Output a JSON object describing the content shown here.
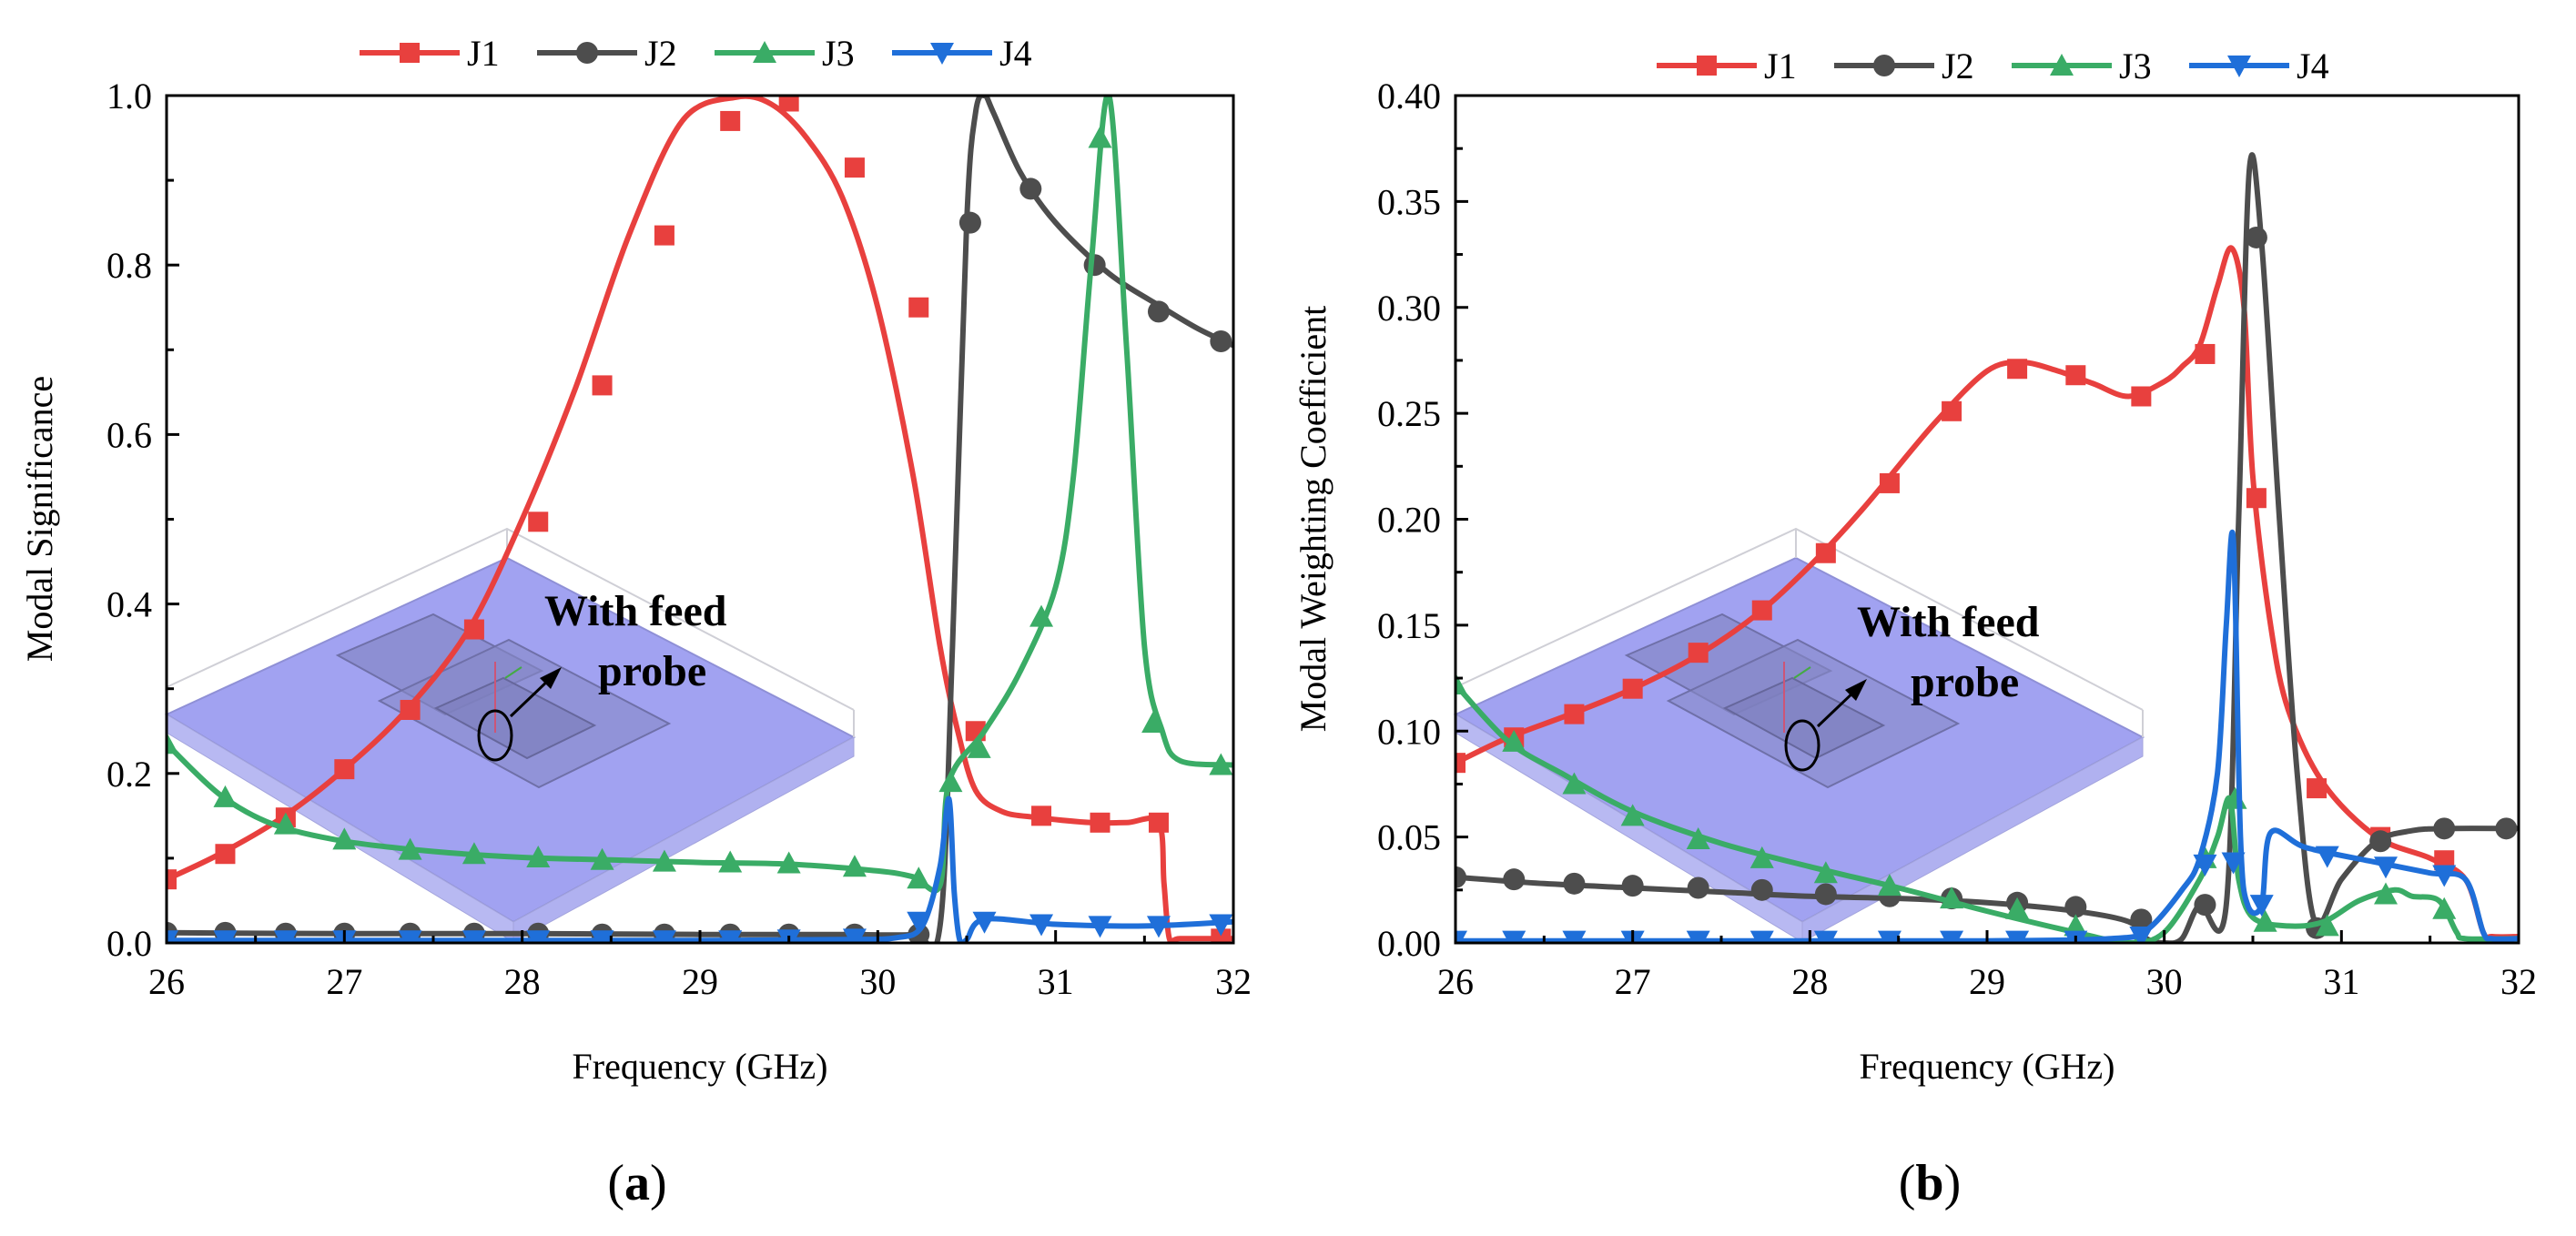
{
  "chart_data": [
    {
      "panel": "(a)",
      "panel_letter": "a",
      "type": "line",
      "xlabel": "Frequency (GHz)",
      "ylabel": "Modal Significance",
      "xlim": [
        26,
        32
      ],
      "ylim": [
        0,
        1.0
      ],
      "xticks": [
        26,
        27,
        28,
        29,
        30,
        31,
        32
      ],
      "yticks": [
        0.0,
        0.2,
        0.4,
        0.6,
        0.8,
        1.0
      ],
      "ytick_labels": [
        "0.0",
        "0.2",
        "0.4",
        "0.6",
        "0.8",
        "1.0"
      ],
      "legend_position": "top",
      "inset_annotation": "With feed probe",
      "inset_lines": [
        "With feed",
        "probe"
      ],
      "series": [
        {
          "name": "J1",
          "color": "#e8403e",
          "marker": "square",
          "x": [
            26.0,
            26.3,
            26.65,
            27.0,
            27.35,
            27.7,
            28.0,
            28.3,
            28.6,
            28.9,
            29.2,
            29.4,
            29.6,
            29.8,
            30.0,
            30.2,
            30.35,
            30.45,
            30.55,
            30.7,
            30.9,
            31.2,
            31.4,
            31.58,
            31.61,
            31.64,
            31.7,
            32.0
          ],
          "y": [
            0.075,
            0.105,
            0.148,
            0.205,
            0.275,
            0.37,
            0.5,
            0.655,
            0.835,
            0.97,
            0.998,
            0.99,
            0.95,
            0.88,
            0.75,
            0.55,
            0.35,
            0.25,
            0.18,
            0.155,
            0.148,
            0.142,
            0.142,
            0.142,
            0.07,
            0.005,
            0.005,
            0.005
          ],
          "marker_x": [
            26.0,
            26.33,
            26.67,
            27.0,
            27.37,
            27.73,
            28.09,
            28.45,
            28.8,
            29.17,
            29.5,
            29.87,
            30.23,
            30.55,
            30.92,
            31.25,
            31.58,
            31.93
          ],
          "marker_y": [
            0.075,
            0.105,
            0.148,
            0.205,
            0.275,
            0.37,
            0.497,
            0.658,
            0.835,
            0.97,
            0.993,
            0.915,
            0.75,
            0.25,
            0.15,
            0.142,
            0.142,
            0.005
          ]
        },
        {
          "name": "J2",
          "color": "#4d4d4d",
          "marker": "circle",
          "x": [
            26.0,
            27.0,
            28.0,
            29.0,
            29.8,
            30.2,
            30.35,
            30.42,
            30.5,
            30.55,
            30.6,
            30.65,
            30.8,
            31.0,
            31.3,
            31.6,
            31.8,
            32.0
          ],
          "y": [
            0.012,
            0.011,
            0.011,
            0.01,
            0.01,
            0.01,
            0.02,
            0.35,
            0.85,
            0.98,
            1.0,
            0.98,
            0.91,
            0.85,
            0.79,
            0.75,
            0.725,
            0.705
          ],
          "marker_x": [
            26.0,
            26.33,
            26.67,
            27.0,
            27.37,
            27.73,
            28.09,
            28.45,
            28.8,
            29.17,
            29.5,
            29.87,
            30.23,
            30.52,
            30.86,
            31.22,
            31.58,
            31.93
          ],
          "marker_y": [
            0.012,
            0.012,
            0.011,
            0.011,
            0.011,
            0.011,
            0.011,
            0.01,
            0.01,
            0.01,
            0.01,
            0.01,
            0.01,
            0.85,
            0.89,
            0.8,
            0.745,
            0.71
          ]
        },
        {
          "name": "J3",
          "color": "#3aac66",
          "marker": "triangle-up",
          "x": [
            26.0,
            26.3,
            26.6,
            27.0,
            27.5,
            28.0,
            28.5,
            29.0,
            29.5,
            30.0,
            30.2,
            30.35,
            30.4,
            30.6,
            30.8,
            31.0,
            31.1,
            31.2,
            31.3,
            31.4,
            31.5,
            31.6,
            31.7,
            32.0
          ],
          "y": [
            0.235,
            0.175,
            0.14,
            0.12,
            0.108,
            0.101,
            0.098,
            0.095,
            0.093,
            0.085,
            0.078,
            0.068,
            0.19,
            0.25,
            0.32,
            0.42,
            0.55,
            0.8,
            1.0,
            0.7,
            0.35,
            0.25,
            0.215,
            0.21
          ],
          "marker_x": [
            26.0,
            26.33,
            26.67,
            27.0,
            27.37,
            27.73,
            28.09,
            28.45,
            28.8,
            29.17,
            29.5,
            29.87,
            30.23,
            30.41,
            30.57,
            30.92,
            31.25,
            31.55,
            31.93
          ],
          "marker_y": [
            0.235,
            0.172,
            0.14,
            0.122,
            0.11,
            0.105,
            0.101,
            0.098,
            0.096,
            0.095,
            0.094,
            0.09,
            0.076,
            0.19,
            0.23,
            0.385,
            0.95,
            0.26,
            0.21
          ]
        },
        {
          "name": "J4",
          "color": "#1f6fd9",
          "marker": "triangle-down",
          "x": [
            26.0,
            27.0,
            28.0,
            29.0,
            29.8,
            30.1,
            30.25,
            30.35,
            30.4,
            30.43,
            30.46,
            30.5,
            30.6,
            31.0,
            31.5,
            32.0
          ],
          "y": [
            0.003,
            0.003,
            0.003,
            0.003,
            0.004,
            0.006,
            0.02,
            0.09,
            0.17,
            0.06,
            0.004,
            0.004,
            0.028,
            0.022,
            0.02,
            0.025
          ],
          "marker_x": [
            26.0,
            26.33,
            26.67,
            27.0,
            27.37,
            27.73,
            28.09,
            28.45,
            28.8,
            29.17,
            29.5,
            29.87,
            30.23,
            30.6,
            30.92,
            31.25,
            31.58,
            31.93
          ],
          "marker_y": [
            0.003,
            0.003,
            0.003,
            0.003,
            0.003,
            0.003,
            0.003,
            0.003,
            0.003,
            0.003,
            0.004,
            0.005,
            0.025,
            0.025,
            0.022,
            0.02,
            0.02,
            0.022
          ]
        }
      ]
    },
    {
      "panel": "(b)",
      "panel_letter": "b",
      "type": "line",
      "xlabel": "Frequency (GHz)",
      "ylabel": "Modal Weighting Coefficient",
      "xlim": [
        26,
        32
      ],
      "ylim": [
        0,
        0.4
      ],
      "xticks": [
        26,
        27,
        28,
        29,
        30,
        31,
        32
      ],
      "yticks": [
        0.0,
        0.05,
        0.1,
        0.15,
        0.2,
        0.25,
        0.3,
        0.35,
        0.4
      ],
      "ytick_labels": [
        "0.00",
        "0.05",
        "0.10",
        "0.15",
        "0.20",
        "0.25",
        "0.30",
        "0.35",
        "0.40"
      ],
      "legend_position": "top",
      "inset_annotation": "With feed probe",
      "inset_lines": [
        "With feed",
        "probe"
      ],
      "series": [
        {
          "name": "J1",
          "color": "#e8403e",
          "marker": "square",
          "x": [
            26.0,
            26.3,
            26.65,
            27.0,
            27.35,
            27.7,
            28.0,
            28.3,
            28.7,
            29.0,
            29.2,
            29.4,
            29.6,
            29.8,
            30.0,
            30.1,
            30.2,
            30.3,
            30.38,
            30.45,
            30.5,
            30.6,
            30.7,
            30.9,
            31.2,
            31.5,
            31.7,
            31.8,
            31.85,
            32.0
          ],
          "y": [
            0.085,
            0.097,
            0.108,
            0.12,
            0.135,
            0.155,
            0.178,
            0.205,
            0.245,
            0.27,
            0.274,
            0.27,
            0.264,
            0.258,
            0.265,
            0.272,
            0.282,
            0.31,
            0.328,
            0.3,
            0.22,
            0.15,
            0.11,
            0.075,
            0.05,
            0.04,
            0.03,
            0.005,
            0.003,
            0.003
          ],
          "marker_x": [
            26.0,
            26.33,
            26.67,
            27.0,
            27.37,
            27.73,
            28.09,
            28.45,
            28.8,
            29.17,
            29.5,
            29.87,
            30.23,
            30.52,
            30.86,
            31.22,
            31.58
          ],
          "marker_y": [
            0.085,
            0.097,
            0.108,
            0.12,
            0.137,
            0.157,
            0.184,
            0.217,
            0.251,
            0.271,
            0.268,
            0.258,
            0.278,
            0.21,
            0.073,
            0.05,
            0.039
          ]
        },
        {
          "name": "J2",
          "color": "#4d4d4d",
          "marker": "circle",
          "x": [
            26.0,
            26.5,
            27.0,
            27.5,
            28.0,
            28.5,
            29.0,
            29.5,
            29.8,
            29.9,
            30.0,
            30.1,
            30.2,
            30.35,
            30.42,
            30.48,
            30.55,
            30.65,
            30.75,
            30.85,
            31.0,
            31.2,
            31.4,
            31.6,
            32.0
          ],
          "y": [
            0.031,
            0.028,
            0.026,
            0.024,
            0.022,
            0.021,
            0.019,
            0.015,
            0.01,
            0.002,
            0.0,
            0.002,
            0.018,
            0.018,
            0.2,
            0.365,
            0.33,
            0.2,
            0.08,
            0.01,
            0.03,
            0.048,
            0.053,
            0.054,
            0.054
          ],
          "marker_x": [
            26.0,
            26.33,
            26.67,
            27.0,
            27.37,
            27.73,
            28.09,
            28.45,
            28.8,
            29.17,
            29.5,
            29.87,
            30.23,
            30.52,
            30.86,
            31.22,
            31.58,
            31.93
          ],
          "marker_y": [
            0.031,
            0.03,
            0.028,
            0.027,
            0.026,
            0.025,
            0.023,
            0.022,
            0.021,
            0.019,
            0.017,
            0.011,
            0.018,
            0.333,
            0.007,
            0.048,
            0.054,
            0.054
          ]
        },
        {
          "name": "J3",
          "color": "#3aac66",
          "marker": "triangle-up",
          "x": [
            26.0,
            26.3,
            26.6,
            27.0,
            27.5,
            28.0,
            28.5,
            29.0,
            29.5,
            29.8,
            30.0,
            30.2,
            30.3,
            30.37,
            30.42,
            30.5,
            30.7,
            30.9,
            31.1,
            31.3,
            31.4,
            31.55,
            31.65,
            31.7,
            32.0
          ],
          "y": [
            0.122,
            0.095,
            0.08,
            0.062,
            0.047,
            0.036,
            0.026,
            0.015,
            0.005,
            0.0,
            0.005,
            0.03,
            0.05,
            0.068,
            0.03,
            0.012,
            0.008,
            0.01,
            0.02,
            0.025,
            0.022,
            0.02,
            0.005,
            0.002,
            0.002
          ],
          "marker_x": [
            26.0,
            26.33,
            26.67,
            27.0,
            27.37,
            27.73,
            28.09,
            28.45,
            28.8,
            29.17,
            29.5,
            29.87,
            30.23,
            30.4,
            30.57,
            30.92,
            31.25,
            31.58
          ],
          "marker_y": [
            0.122,
            0.095,
            0.075,
            0.06,
            0.049,
            0.04,
            0.033,
            0.027,
            0.021,
            0.016,
            0.008,
            0.002,
            0.04,
            0.068,
            0.01,
            0.008,
            0.023,
            0.016
          ]
        },
        {
          "name": "J4",
          "color": "#1f6fd9",
          "marker": "triangle-down",
          "x": [
            26.0,
            27.0,
            28.0,
            29.0,
            29.7,
            29.9,
            30.1,
            30.2,
            30.3,
            30.35,
            30.39,
            30.43,
            30.47,
            30.55,
            30.6,
            30.8,
            31.2,
            31.5,
            31.7,
            31.8,
            31.85,
            32.0
          ],
          "y": [
            0.001,
            0.001,
            0.001,
            0.001,
            0.002,
            0.006,
            0.025,
            0.04,
            0.08,
            0.15,
            0.19,
            0.05,
            0.018,
            0.018,
            0.052,
            0.045,
            0.038,
            0.033,
            0.03,
            0.005,
            0.002,
            0.002
          ],
          "marker_x": [
            26.0,
            26.33,
            26.67,
            27.0,
            27.37,
            27.73,
            28.09,
            28.45,
            28.8,
            29.17,
            29.5,
            29.87,
            30.23,
            30.39,
            30.55,
            30.92,
            31.25,
            31.58
          ],
          "marker_y": [
            0.001,
            0.001,
            0.001,
            0.001,
            0.001,
            0.001,
            0.001,
            0.001,
            0.001,
            0.001,
            0.001,
            0.003,
            0.037,
            0.038,
            0.018,
            0.041,
            0.036,
            0.032
          ]
        }
      ]
    }
  ]
}
